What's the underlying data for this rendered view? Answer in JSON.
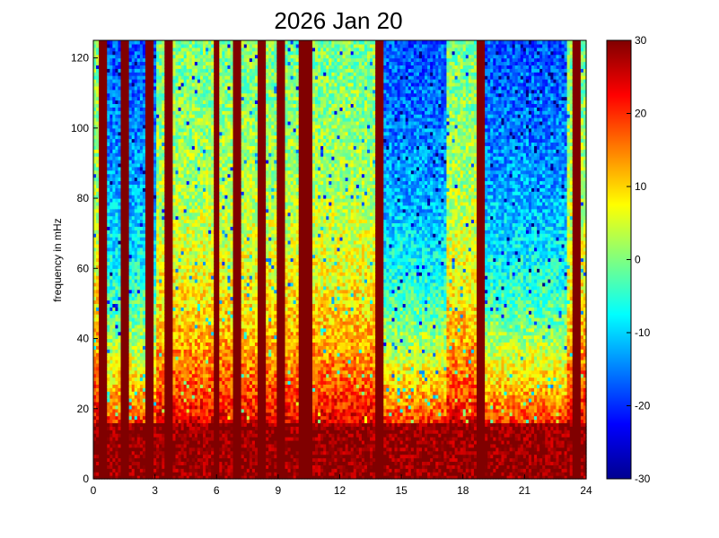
{
  "chart_data": {
    "type": "heatmap",
    "title": "2026 Jan 20",
    "xlabel": "",
    "ylabel": "frequency in mHz",
    "xlim": [
      0,
      24
    ],
    "ylim": [
      0,
      125
    ],
    "xticks": [
      0,
      3,
      6,
      9,
      12,
      15,
      18,
      21,
      24
    ],
    "xtick_labels": [
      "0",
      "3",
      "6",
      "9",
      "12",
      "15",
      "18",
      "21",
      "24"
    ],
    "yticks": [
      0,
      20,
      40,
      60,
      80,
      100,
      120
    ],
    "ytick_labels": [
      "0",
      "20",
      "40",
      "60",
      "80",
      "100",
      "120"
    ],
    "colorbar": {
      "colormap": "jet",
      "clim": [
        -30,
        30
      ],
      "ticks": [
        -30,
        -20,
        -10,
        0,
        10,
        20,
        30
      ],
      "tick_labels": [
        "-30",
        "-20",
        "-10",
        "0",
        "10",
        "20",
        "30"
      ]
    },
    "saturated_columns_hours": [
      0.5,
      1.55,
      2.7,
      3.65,
      6.0,
      7.0,
      8.2,
      9.2,
      10.2,
      10.45,
      13.9,
      18.9,
      23.5
    ],
    "low_frequency_band_mhz": [
      0,
      16
    ],
    "quiet_intervals_hours": [
      [
        0.6,
        3.0
      ],
      [
        13.9,
        17.2
      ],
      [
        18.9,
        23.0
      ]
    ],
    "grid": false
  }
}
